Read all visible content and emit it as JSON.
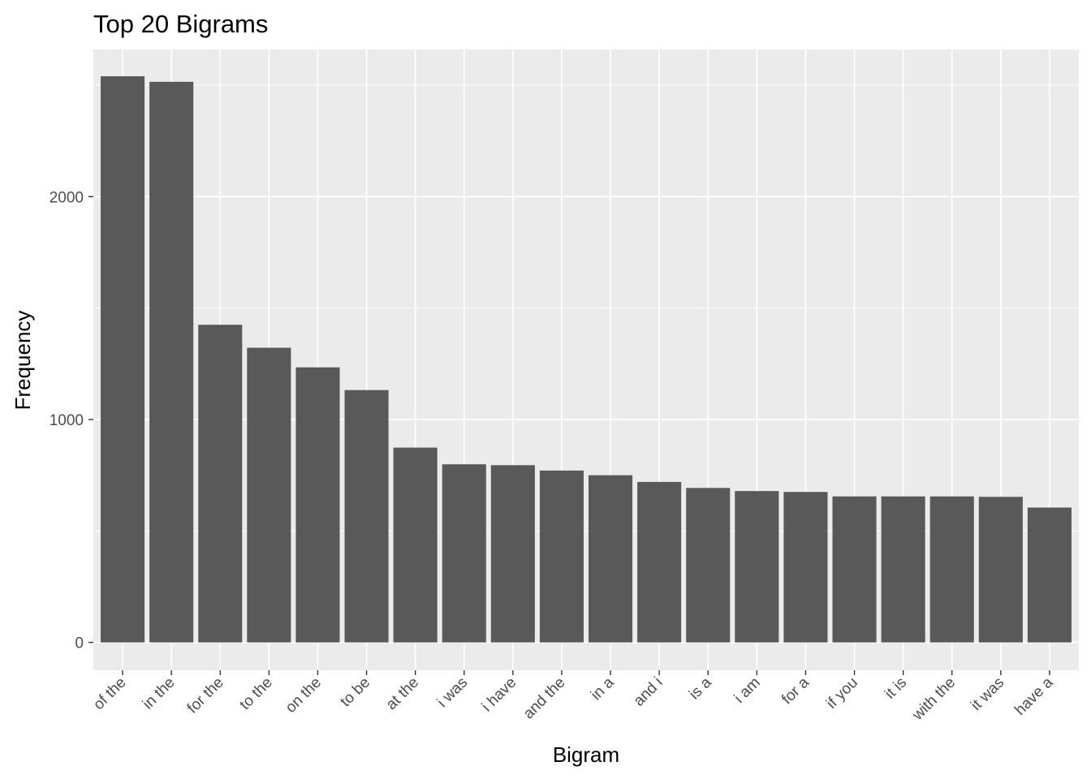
{
  "chart_data": {
    "type": "bar",
    "title": "Top 20 Bigrams",
    "xlabel": "Bigram",
    "ylabel": "Frequency",
    "categories": [
      "of the",
      "in the",
      "for the",
      "to the",
      "on the",
      "to be",
      "at the",
      "i was",
      "i have",
      "and the",
      "in a",
      "and i",
      "is a",
      "i am",
      "for a",
      "if you",
      "it is",
      "with the",
      "it was",
      "have a"
    ],
    "values": [
      2540,
      2515,
      1425,
      1322,
      1234,
      1132,
      874,
      799,
      795,
      771,
      750,
      720,
      693,
      679,
      675,
      655,
      655,
      655,
      653,
      605
    ],
    "ylim": [
      -125,
      2660
    ],
    "yticks": [
      0,
      1000,
      2000
    ],
    "ytick_labels": [
      "0",
      "1000",
      "2000"
    ],
    "yminor": [
      500,
      1500,
      2500
    ],
    "bar_color": "#595959",
    "panel_color": "#ebebeb",
    "grid": true,
    "legend": "none"
  }
}
